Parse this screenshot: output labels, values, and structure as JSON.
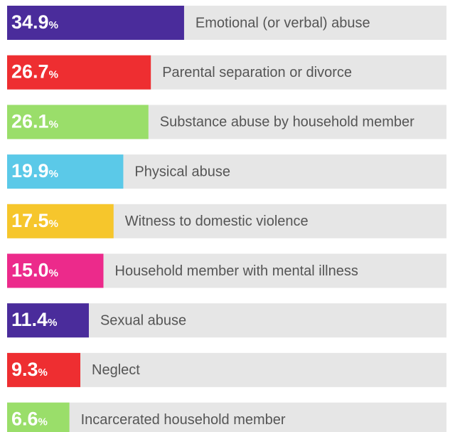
{
  "chart_data": {
    "type": "hbar",
    "categories": [
      "Emotional (or verbal) abuse",
      "Parental separation or divorce",
      "Substance abuse by household member",
      "Physical abuse",
      "Witness to domestic violence",
      "Household member with mental illness",
      "Sexual abuse",
      "Neglect",
      "Incarcerated household member"
    ],
    "values": [
      34.9,
      26.7,
      26.1,
      19.9,
      17.5,
      15.0,
      11.4,
      9.3,
      6.6
    ],
    "value_labels": [
      "34.9%",
      "26.7%",
      "26.1%",
      "19.9%",
      "17.5%",
      "15.0%",
      "11.4%",
      "9.3%",
      "6.6%"
    ],
    "colors": [
      "#4a2c9b",
      "#ee2e31",
      "#9ade6a",
      "#5bc9e8",
      "#f6c62c",
      "#ec2a8b",
      "#4a2c9b",
      "#ee2e31",
      "#9ade6a"
    ]
  }
}
